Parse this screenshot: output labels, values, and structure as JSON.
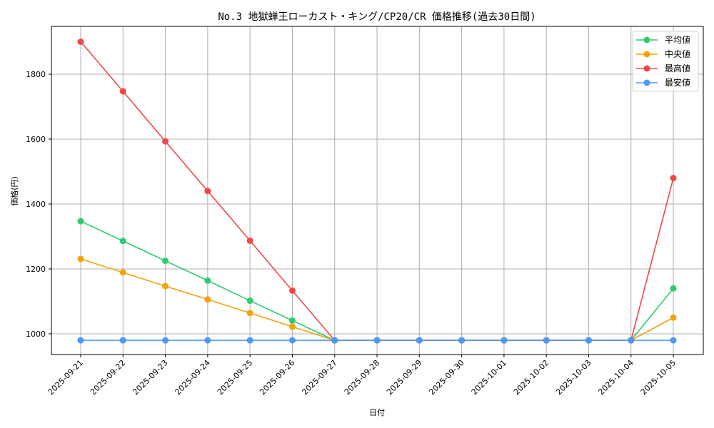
{
  "chart_data": {
    "type": "line",
    "title": "No.3 地獄蝉王ローカスト・キング/CP20/CR 価格推移(過去30日間)",
    "xlabel": "日付",
    "ylabel": "価格(円)",
    "categories": [
      "2025-09-21",
      "2025-09-22",
      "2025-09-23",
      "2025-09-24",
      "2025-09-25",
      "2025-09-26",
      "2025-09-27",
      "2025-09-28",
      "2025-09-29",
      "2025-09-30",
      "2025-10-01",
      "2025-10-02",
      "2025-10-03",
      "2025-10-04",
      "2025-10-05"
    ],
    "series": [
      {
        "name": "平均値",
        "color": "#2ecc71",
        "values": [
          1347,
          1286,
          1225,
          1164,
          1102,
          1041,
          980,
          980,
          980,
          980,
          980,
          980,
          980,
          980,
          1140
        ]
      },
      {
        "name": "中央値",
        "color": "#f5a20a",
        "values": [
          1231,
          1189,
          1147,
          1106,
          1064,
          1022,
          980,
          980,
          980,
          980,
          980,
          980,
          980,
          980,
          1050
        ]
      },
      {
        "name": "最高値",
        "color": "#f04848",
        "values": [
          1900,
          1747,
          1593,
          1440,
          1287,
          1133,
          980,
          980,
          980,
          980,
          980,
          980,
          980,
          980,
          1480
        ]
      },
      {
        "name": "最安値",
        "color": "#4a9af5",
        "values": [
          980,
          980,
          980,
          980,
          980,
          980,
          980,
          980,
          980,
          980,
          980,
          980,
          980,
          980,
          980
        ]
      }
    ],
    "yticks": [
      1000,
      1200,
      1400,
      1600,
      1800
    ],
    "ylim": [
      935,
      1950
    ],
    "grid": true,
    "legend_position": "upper right"
  }
}
